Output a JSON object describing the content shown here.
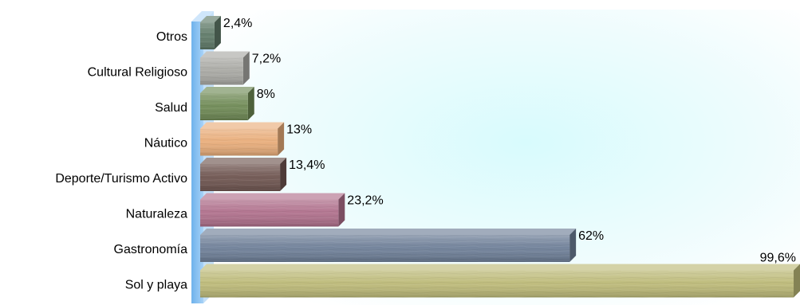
{
  "chart_data": {
    "type": "bar",
    "orientation": "horizontal",
    "categories": [
      "Otros",
      "Cultural Religioso",
      "Salud",
      "Náutico",
      "Deporte/Turismo Activo",
      "Naturaleza",
      "Gastronomía",
      "Sol y playa"
    ],
    "values": [
      2.4,
      7.2,
      8,
      13,
      13.4,
      23.2,
      62,
      99.6
    ],
    "value_labels": [
      "2,4%",
      "7,2%",
      "8%",
      "13%",
      "13,4%",
      "23,2%",
      "62%",
      "99,6%"
    ],
    "bar_colors": [
      "#5f7a68",
      "#a9a9a4",
      "#6f8a55",
      "#e9ad7a",
      "#6f5550",
      "#b0708c",
      "#6e7f98",
      "#bdba78"
    ],
    "xlim": [
      0,
      100
    ],
    "title": "",
    "xlabel": "",
    "ylabel": "",
    "grid": false,
    "legend": "none",
    "bar_style": "3d-textured",
    "background": "light cyan gradient"
  }
}
